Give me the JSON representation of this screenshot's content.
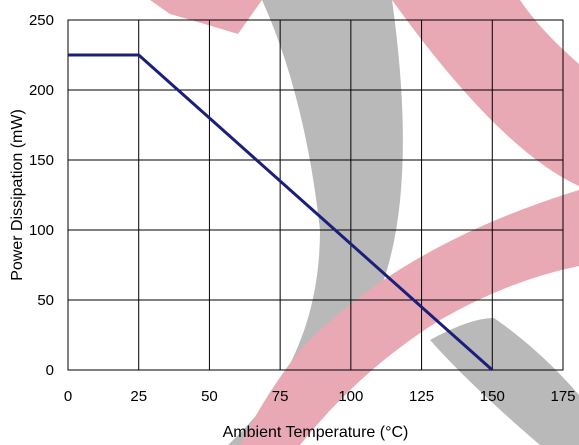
{
  "chart_data": {
    "type": "line",
    "title": "",
    "xlabel": "Ambient Temperature (°C)",
    "ylabel": "Power Dissipation (mW)",
    "xlim": [
      0,
      175
    ],
    "ylim": [
      0,
      250
    ],
    "xticks": [
      0,
      25,
      50,
      75,
      100,
      125,
      150,
      175
    ],
    "yticks": [
      0,
      50,
      100,
      150,
      200,
      250
    ],
    "grid": true,
    "legend": "none",
    "series": [
      {
        "x": [
          0,
          25,
          150
        ],
        "y": [
          225,
          225,
          0
        ],
        "color": "#1c1f7a"
      }
    ]
  },
  "watermark": {
    "red": "#e8a9b4",
    "gray": "#b9b9b9"
  }
}
